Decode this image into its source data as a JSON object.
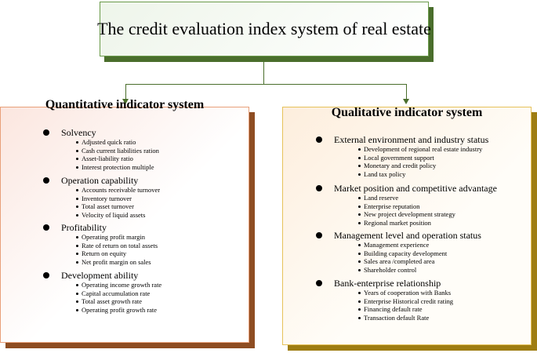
{
  "title": "The credit evaluation index system of real estate",
  "colors": {
    "title_border": "#6a9a4a",
    "title_shadow": "#4a6e2c",
    "left_border": "#e8a07a",
    "left_shadow": "#8e4d22",
    "right_border": "#e6c25a",
    "right_shadow": "#9e7d12"
  },
  "left": {
    "title": "Quantitative indicator system",
    "groups": [
      {
        "label": "Solvency",
        "items": [
          "Adjusted quick ratio",
          "Cash current liabilities ration",
          "Asset-liability ratio",
          "Interest protection multiple"
        ]
      },
      {
        "label": "Operation capability",
        "items": [
          "Accounts receivable turnover",
          "Inventory turnover",
          "Total asset turnover",
          "Velocity of liquid assets"
        ]
      },
      {
        "label": "Profitability",
        "items": [
          "Operating profit margin",
          "Rate of return on total assets",
          "Return on equity",
          "Net profit margin on sales"
        ]
      },
      {
        "label": "Development ability",
        "items": [
          "Operating income growth rate",
          "Capital accumulation rate",
          "Total asset growth rate",
          "Operating profit growth rate"
        ]
      }
    ]
  },
  "right": {
    "title": "Qualitative indicator system",
    "groups": [
      {
        "label": "External environment and industry status",
        "items": [
          "Development of regional real estate industry",
          "Local government support",
          "Monetary and credit policy",
          "Land tax policy"
        ]
      },
      {
        "label": "Market position and competitive advantage",
        "items": [
          "Land reserve",
          "Enterprise reputation",
          "New project development strategy",
          "Regional market position"
        ]
      },
      {
        "label": "Management level and operation status",
        "items": [
          "Management experience",
          "Building capacity development",
          "Sales area /completed area",
          "Shareholder control"
        ]
      },
      {
        "label": "Bank-enterprise relationship",
        "items": [
          "Years of cooperation with Banks",
          "Enterprise Historical credit rating",
          "Financing default rate",
          "Transaction default Rate"
        ]
      }
    ]
  }
}
